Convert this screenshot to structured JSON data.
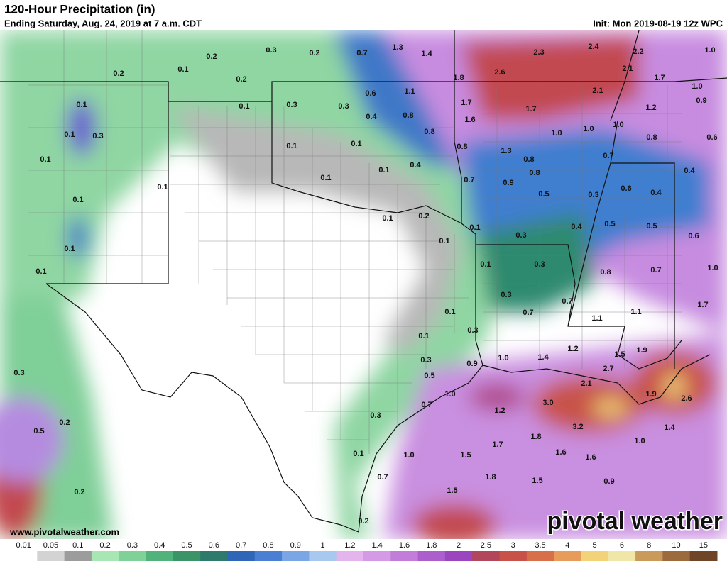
{
  "header": {
    "title": "120-Hour Precipitation (in)",
    "subtitle": "Ending Saturday, Aug. 24, 2019 at 7 a.m. CDT",
    "init": "Init: Mon 2019-08-19 12z WPC"
  },
  "footer": {
    "website": "www.pivotalweather.com",
    "logo": "pivotal weather"
  },
  "map_labels": [
    "1.3",
    "1.4",
    "2.3",
    "2.4",
    "2.2",
    "1.0",
    "0.2",
    "0.3",
    "0.2",
    "0.7",
    "0.2",
    "0.1",
    "0.2",
    "2.6",
    "2.1",
    "1.7",
    "1.8",
    "1.1",
    "0.6",
    "2.1",
    "1.0",
    "0.1",
    "0.1",
    "0.3",
    "0.3",
    "1.7",
    "1.7",
    "1.2",
    "0.9",
    "0.4",
    "0.8",
    "1.6",
    "1.0",
    "0.1",
    "0.3",
    "0.8",
    "1.0",
    "1.0",
    "0.8",
    "0.6",
    "0.1",
    "0.1",
    "0.8",
    "1.3",
    "0.1",
    "0.4",
    "0.8",
    "0.7",
    "0.1",
    "0.1",
    "0.1",
    "0.7",
    "0.9",
    "0.8",
    "0.6",
    "0.4",
    "0.1",
    "0.5",
    "0.3",
    "0.4",
    "0.1",
    "0.2",
    "0.1",
    "0.3",
    "0.4",
    "0.5",
    "0.5",
    "0.6",
    "0.1",
    "0.1",
    "0.1",
    "0.3",
    "0.8",
    "0.7",
    "1.0",
    "0.1",
    "0.3",
    "0.7",
    "1.7",
    "0.1",
    "0.7",
    "1.1",
    "1.1",
    "0.3",
    "0.1",
    "1.2",
    "1.5",
    "1.9",
    "0.3",
    "0.3",
    "0.9",
    "1.0",
    "1.4",
    "2.7",
    "0.5",
    "2.1",
    "1.0",
    "1.9",
    "2.6",
    "3.0",
    "0.7",
    "1.2",
    "0.3",
    "0.2",
    "0.5",
    "3.2",
    "1.4",
    "1.8",
    "1.7",
    "1.0",
    "0.1",
    "1.0",
    "1.5",
    "1.6",
    "1.6",
    "0.7",
    "1.8",
    "1.5",
    "0.9",
    "0.2",
    "1.5",
    "0.2"
  ],
  "legend": {
    "labels": [
      "0.01",
      "0.05",
      "0.1",
      "0.2",
      "0.3",
      "0.4",
      "0.5",
      "0.6",
      "0.7",
      "0.8",
      "0.9",
      "1",
      "1.2",
      "1.4",
      "1.6",
      "1.8",
      "2",
      "2.5",
      "3",
      "3.5",
      "4",
      "5",
      "6",
      "8",
      "10",
      "15"
    ],
    "colors": [
      "#ffffff",
      "#d3d3d3",
      "#9c9c9c",
      "#a8e6b4",
      "#7fd197",
      "#52b27b",
      "#3a9468",
      "#2e7a6c",
      "#2f66b8",
      "#4a7fd4",
      "#7aa6e6",
      "#a9c8f0",
      "#e3b5ec",
      "#d49ae6",
      "#c27cd9",
      "#ac5fcc",
      "#9b45bf",
      "#b2465a",
      "#c8524a",
      "#d7704a",
      "#e89c5c",
      "#f2d37a",
      "#efe6a8",
      "#c99a5a",
      "#9b6b3e",
      "#6e4527"
    ]
  }
}
